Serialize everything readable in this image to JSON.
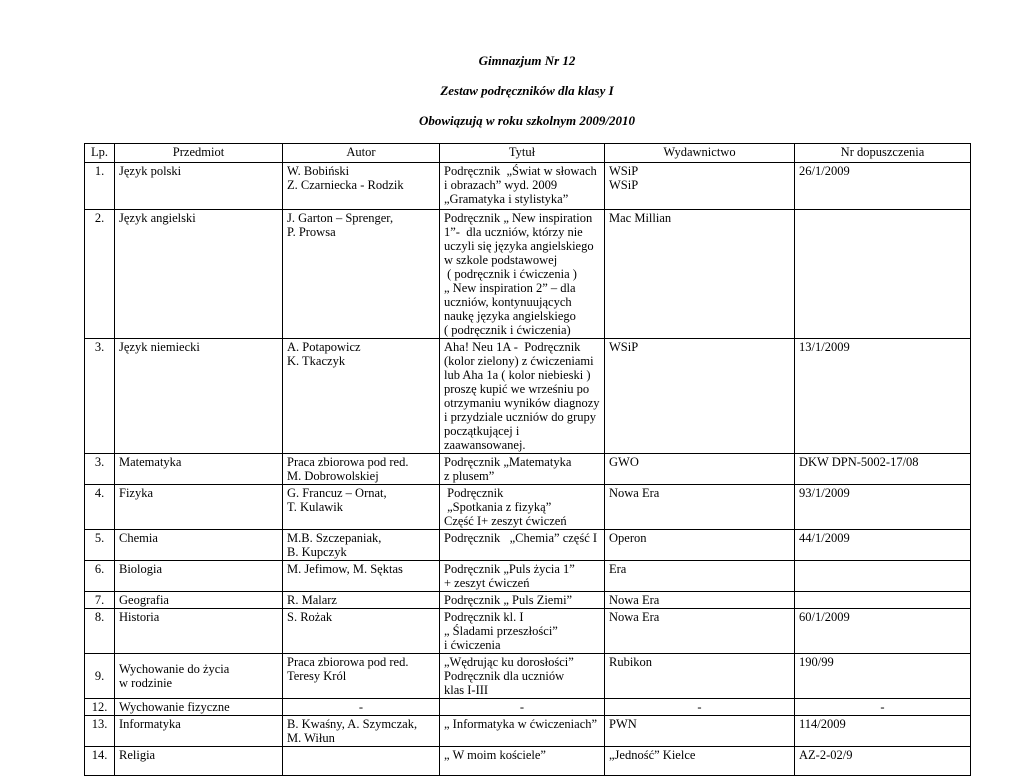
{
  "page": {
    "title_lines": [
      "Gimnazjum Nr 12",
      "Zestaw podręczników dla klasy I",
      "Obowiązują w roku szkolnym 2009/2010"
    ]
  },
  "table": {
    "headers": [
      "Lp.",
      "Przedmiot",
      "Autor",
      "Tytuł",
      "Wydawnictwo",
      "Nr dopuszczenia"
    ],
    "rows": [
      {
        "lp": "1.",
        "przedmiot": "Język polski",
        "autor": "W. Bobiński\nZ. Czarniecka - Rodzik",
        "tytul": "Podręcznik  „Świat w słowach\ni obrazach” wyd. 2009\n„Gramatyka i stylistyka”",
        "wydawnictwo": "WSiP\nWSiP",
        "nr": "26/1/2009"
      },
      {
        "lp": "2.",
        "przedmiot": "Język angielski",
        "autor": "J. Garton – Sprenger,\nP. Prowsa",
        "tytul": "Podręcznik „ New inspiration\n1”-  dla uczniów, którzy nie\nuczyli się języka angielskiego\nw szkole podstawowej\n ( podręcznik i ćwiczenia )\n„ New inspiration 2” – dla\nuczniów, kontynuujących\nnaukę języka angielskiego\n( podręcznik i ćwiczenia)",
        "wydawnictwo": "Mac Millian",
        "nr": ""
      },
      {
        "lp": "3.",
        "przedmiot": "Język niemiecki",
        "autor": "A. Potapowicz\nK. Tkaczyk",
        "tytul": "Aha! Neu 1A -  Podręcznik\n(kolor zielony) z ćwiczeniami\nlub Aha 1a ( kolor niebieski )\nproszę kupić we wrześniu po\notrzymaniu wyników diagnozy\ni przydziale uczniów do grupy\npoczątkującej i zaawansowanej.",
        "wydawnictwo": "WSiP",
        "nr": "13/1/2009"
      },
      {
        "lp": "3.",
        "przedmiot": "Matematyka",
        "autor": "Praca zbiorowa pod red.\nM. Dobrowolskiej",
        "tytul": "Podręcznik „Matematyka\nz plusem”",
        "wydawnictwo": "GWO",
        "nr": "DKW DPN-5002-17/08"
      },
      {
        "lp": "4.",
        "przedmiot": "Fizyka",
        "autor": "G. Francuz – Ornat,\nT. Kulawik",
        "tytul": " Podręcznik\n „Spotkania z fizyką”\nCzęść I+ zeszyt ćwiczeń",
        "wydawnictwo": "Nowa Era",
        "nr": "93/1/2009"
      },
      {
        "lp": "5.",
        "przedmiot": "Chemia",
        "autor": "M.B. Szczepaniak,\nB. Kupczyk",
        "tytul": "Podręcznik   „Chemia” część I",
        "wydawnictwo": "Operon",
        "nr": "44/1/2009"
      },
      {
        "lp": "6.",
        "przedmiot": "Biologia",
        "autor": "M. Jefimow, M. Sęktas",
        "tytul": "Podręcznik „Puls życia 1”\n+ zeszyt ćwiczeń",
        "wydawnictwo": "Era",
        "nr": ""
      },
      {
        "lp": "7.",
        "przedmiot": "Geografia",
        "autor": "R. Malarz",
        "tytul": "Podręcznik „ Puls Ziemi”",
        "wydawnictwo": "Nowa Era",
        "nr": ""
      },
      {
        "lp": "8.",
        "przedmiot": "Historia",
        "autor": "S. Rożak",
        "tytul": "Podręcznik kl. I\n„ Śladami przeszłości”\ni ćwiczenia",
        "wydawnictwo": "Nowa Era",
        "nr": "60/1/2009"
      },
      {
        "lp": "9.",
        "przedmiot": "Wychowanie do życia\nw rodzinie",
        "autor": "Praca zbiorowa pod red.\nTeresy Król",
        "tytul": "„Wędrując ku dorosłości”\nPodręcznik dla uczniów\nklas I-III",
        "wydawnictwo": "Rubikon",
        "nr": "190/99",
        "vcenter": true
      },
      {
        "lp": "12.",
        "przedmiot": "Wychowanie fizyczne",
        "autor": "-",
        "tytul": "-",
        "wydawnictwo": "-",
        "nr": "-"
      },
      {
        "lp": "13.",
        "przedmiot": "Informatyka",
        "autor": "B. Kwaśny, A. Szymczak,\nM. Wiłun",
        "tytul": "„ Informatyka w ćwiczeniach”",
        "wydawnictwo": "PWN",
        "nr": "114/2009"
      },
      {
        "lp": "14.",
        "przedmiot": "Religia",
        "autor": "",
        "tytul": "„ W moim kościele”",
        "wydawnictwo": "„Jedność” Kielce",
        "nr": "AZ-2-02/9"
      }
    ]
  }
}
